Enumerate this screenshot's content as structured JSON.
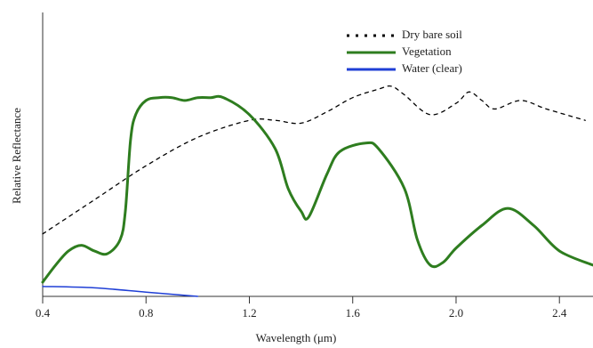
{
  "chart_data": {
    "type": "line",
    "xlabel": "Wavelength (μm)",
    "ylabel": "Relative Reflectance",
    "xlim": [
      0.4,
      2.53
    ],
    "ylim": [
      0,
      1
    ],
    "xticks": [
      0.4,
      0.8,
      1.2,
      1.6,
      {
        "value": 2,
        "label": "2.0"
      },
      2.4
    ],
    "legend": "upper right",
    "series": [
      {
        "name": "Dry bare soil",
        "color": "#000000",
        "style": "dotted",
        "x": [
          0.4,
          0.6,
          0.8,
          1.0,
          1.2,
          1.3,
          1.4,
          1.5,
          1.6,
          1.7,
          1.75,
          1.8,
          1.9,
          2.0,
          2.05,
          2.1,
          2.15,
          2.25,
          2.35,
          2.5
        ],
        "values": [
          0.22,
          0.34,
          0.46,
          0.56,
          0.62,
          0.62,
          0.61,
          0.65,
          0.7,
          0.73,
          0.74,
          0.71,
          0.64,
          0.68,
          0.72,
          0.69,
          0.66,
          0.69,
          0.66,
          0.62
        ]
      },
      {
        "name": "Vegetation",
        "color": "#2e7d1f",
        "style": "solid",
        "x": [
          0.4,
          0.45,
          0.5,
          0.55,
          0.6,
          0.65,
          0.7,
          0.72,
          0.74,
          0.76,
          0.8,
          0.85,
          0.9,
          0.95,
          1.0,
          1.05,
          1.1,
          1.2,
          1.3,
          1.35,
          1.4,
          1.43,
          1.5,
          1.55,
          1.65,
          1.7,
          1.8,
          1.85,
          1.9,
          1.95,
          2.0,
          2.1,
          2.2,
          2.3,
          2.4,
          2.53
        ],
        "values": [
          0.05,
          0.11,
          0.16,
          0.18,
          0.16,
          0.15,
          0.2,
          0.3,
          0.55,
          0.64,
          0.69,
          0.7,
          0.7,
          0.69,
          0.7,
          0.7,
          0.7,
          0.64,
          0.52,
          0.38,
          0.3,
          0.28,
          0.43,
          0.51,
          0.54,
          0.52,
          0.38,
          0.2,
          0.11,
          0.12,
          0.17,
          0.25,
          0.31,
          0.25,
          0.16,
          0.11
        ]
      },
      {
        "name": "Water (clear)",
        "color": "#1f3fd6",
        "style": "solid",
        "x": [
          0.4,
          0.6,
          0.8,
          1.0
        ],
        "values": [
          0.035,
          0.03,
          0.015,
          0
        ]
      }
    ]
  }
}
